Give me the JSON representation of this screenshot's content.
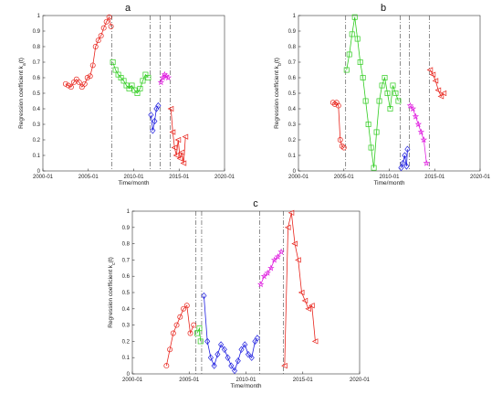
{
  "chart_data": [
    {
      "type": "scatter",
      "panel_label": "a",
      "xlabel": "Time/month",
      "ylabel": "Regression coefficient k",
      "ylabel_subscript": "a",
      "ylabel_suffix": "(t)",
      "xlim": [
        2000,
        2020
      ],
      "ylim": [
        0,
        1
      ],
      "x_ticks": [
        2000,
        2005,
        2010,
        2015,
        2020
      ],
      "x_tick_labels": [
        "2000-01",
        "2005-01",
        "2010-01",
        "2015-01",
        "2020-01"
      ],
      "y_ticks": [
        0,
        0.1,
        0.2,
        0.3,
        0.4,
        0.5,
        0.6,
        0.7,
        0.8,
        0.9,
        1
      ],
      "y_tick_labels": [
        "0",
        "0.1",
        "0.2",
        "0.3",
        "0.4",
        "0.5",
        "0.6",
        "0.7",
        "0.8",
        "0.9",
        "1"
      ],
      "breakpoints": [
        2007.6,
        2011.8,
        2012.9,
        2014.0
      ],
      "series": [
        {
          "color": "#e8241c",
          "marker": "circle",
          "x": [
            2002.5,
            2002.8,
            2003.1,
            2003.4,
            2003.7,
            2004.0,
            2004.3,
            2004.6,
            2004.9,
            2005.2,
            2005.5,
            2005.8,
            2006.1,
            2006.4,
            2006.7,
            2007.0,
            2007.3,
            2007.5
          ],
          "y": [
            0.56,
            0.55,
            0.54,
            0.57,
            0.59,
            0.57,
            0.54,
            0.56,
            0.6,
            0.61,
            0.68,
            0.8,
            0.84,
            0.87,
            0.92,
            0.96,
            0.99,
            0.93
          ]
        },
        {
          "color": "#2ecc1e",
          "marker": "square",
          "x": [
            2007.7,
            2008.0,
            2008.3,
            2008.6,
            2008.9,
            2009.2,
            2009.5,
            2009.8,
            2010.1,
            2010.4,
            2010.7,
            2011.0,
            2011.3,
            2011.6
          ],
          "y": [
            0.7,
            0.65,
            0.62,
            0.6,
            0.58,
            0.55,
            0.53,
            0.55,
            0.52,
            0.5,
            0.53,
            0.58,
            0.62,
            0.6
          ]
        },
        {
          "color": "#2020e0",
          "marker": "diamond",
          "x": [
            2011.9,
            2012.1,
            2012.3,
            2012.5,
            2012.7
          ],
          "y": [
            0.36,
            0.26,
            0.32,
            0.4,
            0.42
          ]
        },
        {
          "color": "#e020e0",
          "marker": "star",
          "x": [
            2013.0,
            2013.2,
            2013.4,
            2013.6,
            2013.8
          ],
          "y": [
            0.57,
            0.6,
            0.62,
            0.61,
            0.6
          ]
        },
        {
          "color": "#e8241c",
          "marker": "triangle",
          "x": [
            2014.1,
            2014.3,
            2014.5,
            2014.7,
            2014.9,
            2015.1,
            2015.3,
            2015.5,
            2015.7
          ],
          "y": [
            0.4,
            0.25,
            0.15,
            0.1,
            0.2,
            0.08,
            0.12,
            0.05,
            0.22
          ]
        }
      ]
    },
    {
      "type": "scatter",
      "panel_label": "b",
      "xlabel": "Time/month",
      "ylabel": "Regression coefficient k",
      "ylabel_subscript": "b",
      "ylabel_suffix": "(t)",
      "xlim": [
        2000,
        2020
      ],
      "ylim": [
        0,
        1
      ],
      "x_ticks": [
        2000,
        2005,
        2010,
        2015,
        2020
      ],
      "x_tick_labels": [
        "2000-01",
        "2005-01",
        "2010-01",
        "2015-01",
        "2020-01"
      ],
      "y_ticks": [
        0,
        0.1,
        0.2,
        0.3,
        0.4,
        0.5,
        0.6,
        0.7,
        0.8,
        0.9,
        1
      ],
      "y_tick_labels": [
        "0",
        "0.1",
        "0.2",
        "0.3",
        "0.4",
        "0.5",
        "0.6",
        "0.7",
        "0.8",
        "0.9",
        "1"
      ],
      "breakpoints": [
        2005.2,
        2011.2,
        2012.2,
        2014.4
      ],
      "series": [
        {
          "color": "#e8241c",
          "marker": "circle",
          "x": [
            2003.8,
            2004.0,
            2004.2,
            2004.4,
            2004.6,
            2004.8,
            2005.0
          ],
          "y": [
            0.44,
            0.43,
            0.44,
            0.42,
            0.2,
            0.16,
            0.15
          ]
        },
        {
          "color": "#2ecc1e",
          "marker": "square",
          "x": [
            2005.3,
            2005.6,
            2005.9,
            2006.2,
            2006.5,
            2006.8,
            2007.1,
            2007.4,
            2007.7,
            2008.0,
            2008.3,
            2008.6,
            2008.9,
            2009.2,
            2009.5,
            2009.8,
            2010.1,
            2010.4,
            2010.7,
            2011.0
          ],
          "y": [
            0.65,
            0.75,
            0.88,
            0.99,
            0.85,
            0.7,
            0.6,
            0.45,
            0.3,
            0.15,
            0.02,
            0.25,
            0.45,
            0.55,
            0.6,
            0.5,
            0.4,
            0.55,
            0.5,
            0.45
          ]
        },
        {
          "color": "#2020e0",
          "marker": "diamond",
          "x": [
            2011.3,
            2011.5,
            2011.7,
            2011.9,
            2012.0
          ],
          "y": [
            0.02,
            0.05,
            0.1,
            0.03,
            0.14
          ]
        },
        {
          "color": "#e020e0",
          "marker": "star",
          "x": [
            2012.3,
            2012.6,
            2012.9,
            2013.2,
            2013.5,
            2013.8,
            2014.1
          ],
          "y": [
            0.42,
            0.4,
            0.35,
            0.3,
            0.25,
            0.2,
            0.05
          ]
        },
        {
          "color": "#e8241c",
          "marker": "triangle",
          "x": [
            2014.5,
            2014.8,
            2015.1,
            2015.4,
            2015.7,
            2016.0
          ],
          "y": [
            0.65,
            0.62,
            0.58,
            0.52,
            0.48,
            0.5
          ]
        }
      ]
    },
    {
      "type": "scatter",
      "panel_label": "c",
      "xlabel": "Time/month",
      "ylabel": "Regression coefficient k",
      "ylabel_subscript": "c",
      "ylabel_suffix": "(t)",
      "xlim": [
        2000,
        2020
      ],
      "ylim": [
        0,
        1
      ],
      "x_ticks": [
        2000,
        2005,
        2010,
        2015,
        2020
      ],
      "x_tick_labels": [
        "2000-01",
        "2005-01",
        "2010-01",
        "2015-01",
        "2020-01"
      ],
      "y_ticks": [
        0,
        0.1,
        0.2,
        0.3,
        0.4,
        0.5,
        0.6,
        0.7,
        0.8,
        0.9,
        1
      ],
      "y_tick_labels": [
        "0",
        "0.1",
        "0.2",
        "0.3",
        "0.4",
        "0.5",
        "0.6",
        "0.7",
        "0.8",
        "0.9",
        "1"
      ],
      "breakpoints": [
        2005.6,
        2006.1,
        2011.2,
        2013.3
      ],
      "series": [
        {
          "color": "#e8241c",
          "marker": "circle",
          "x": [
            2003.0,
            2003.3,
            2003.6,
            2003.9,
            2004.2,
            2004.5,
            2004.8,
            2005.1,
            2005.4
          ],
          "y": [
            0.05,
            0.15,
            0.25,
            0.3,
            0.35,
            0.4,
            0.42,
            0.25,
            0.3
          ]
        },
        {
          "color": "#2ecc1e",
          "marker": "square",
          "x": [
            2005.7,
            2005.9,
            2006.0
          ],
          "y": [
            0.25,
            0.28,
            0.2
          ]
        },
        {
          "color": "#2020e0",
          "marker": "diamond",
          "x": [
            2006.3,
            2006.6,
            2006.9,
            2007.2,
            2007.5,
            2007.8,
            2008.1,
            2008.4,
            2008.7,
            2009.0,
            2009.3,
            2009.6,
            2009.9,
            2010.2,
            2010.5,
            2010.8,
            2011.0
          ],
          "y": [
            0.48,
            0.2,
            0.1,
            0.05,
            0.12,
            0.18,
            0.15,
            0.1,
            0.05,
            0.02,
            0.08,
            0.15,
            0.18,
            0.12,
            0.1,
            0.2,
            0.22
          ]
        },
        {
          "color": "#e020e0",
          "marker": "star",
          "x": [
            2011.3,
            2011.6,
            2011.9,
            2012.2,
            2012.5,
            2012.8,
            2013.1
          ],
          "y": [
            0.55,
            0.6,
            0.62,
            0.65,
            0.7,
            0.72,
            0.75
          ]
        },
        {
          "color": "#e8241c",
          "marker": "triangle",
          "x": [
            2013.4,
            2013.7,
            2014.0,
            2014.3,
            2014.6,
            2014.9,
            2015.2,
            2015.5,
            2015.8,
            2016.1
          ],
          "y": [
            0.05,
            0.9,
            0.99,
            0.8,
            0.7,
            0.5,
            0.45,
            0.4,
            0.42,
            0.2
          ]
        }
      ]
    }
  ]
}
